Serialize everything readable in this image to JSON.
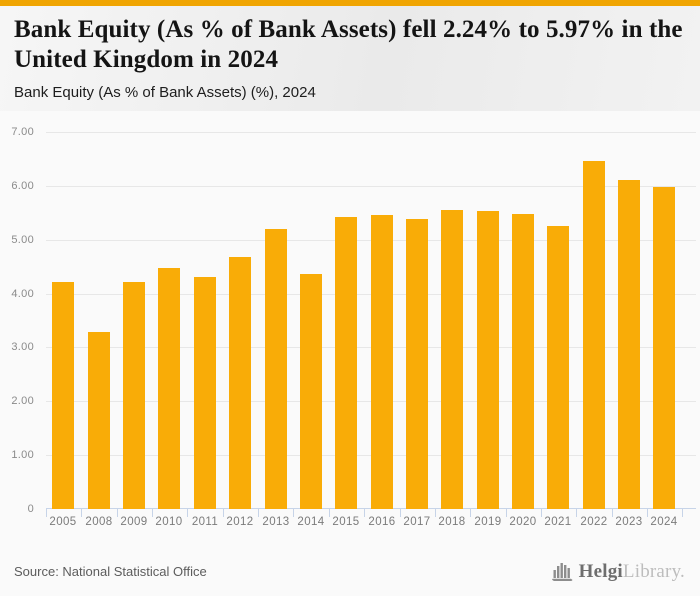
{
  "page": {
    "accent_color": "#f0a502",
    "background_color": "#fafafa"
  },
  "header": {
    "title": "Bank Equity (As % of Bank Assets) fell 2.24% to 5.97% in the United Kingdom in 2024",
    "subtitle": "Bank Equity (As % of Bank Assets) (%), 2024"
  },
  "chart_data": {
    "type": "bar",
    "title": "Bank Equity (As % of Bank Assets) fell 2.24% to 5.97% in the United Kingdom in 2024",
    "subtitle": "Bank Equity (As % of Bank Assets) (%), 2024",
    "categories": [
      "2005",
      "2008",
      "2009",
      "2010",
      "2011",
      "2012",
      "2013",
      "2014",
      "2015",
      "2016",
      "2017",
      "2018",
      "2019",
      "2020",
      "2021",
      "2022",
      "2023",
      "2024"
    ],
    "values": [
      4.21,
      3.29,
      4.21,
      4.47,
      4.31,
      4.68,
      5.2,
      4.36,
      5.43,
      5.46,
      5.38,
      5.56,
      5.53,
      5.47,
      5.25,
      6.46,
      6.11,
      5.97
    ],
    "xlabel": "",
    "ylabel": "",
    "ylim": [
      0,
      7
    ],
    "ytick_labels": [
      "7.00",
      "6.00",
      "5.00",
      "4.00",
      "3.00",
      "2.00",
      "1.00",
      "0"
    ],
    "grid": true,
    "legend": false,
    "bar_color": "#f9ac07"
  },
  "footer": {
    "source": "Source: National Statistical Office",
    "logo": {
      "icon": "bar-columns-icon",
      "name_primary": "Helgi",
      "name_secondary": "Library."
    }
  }
}
